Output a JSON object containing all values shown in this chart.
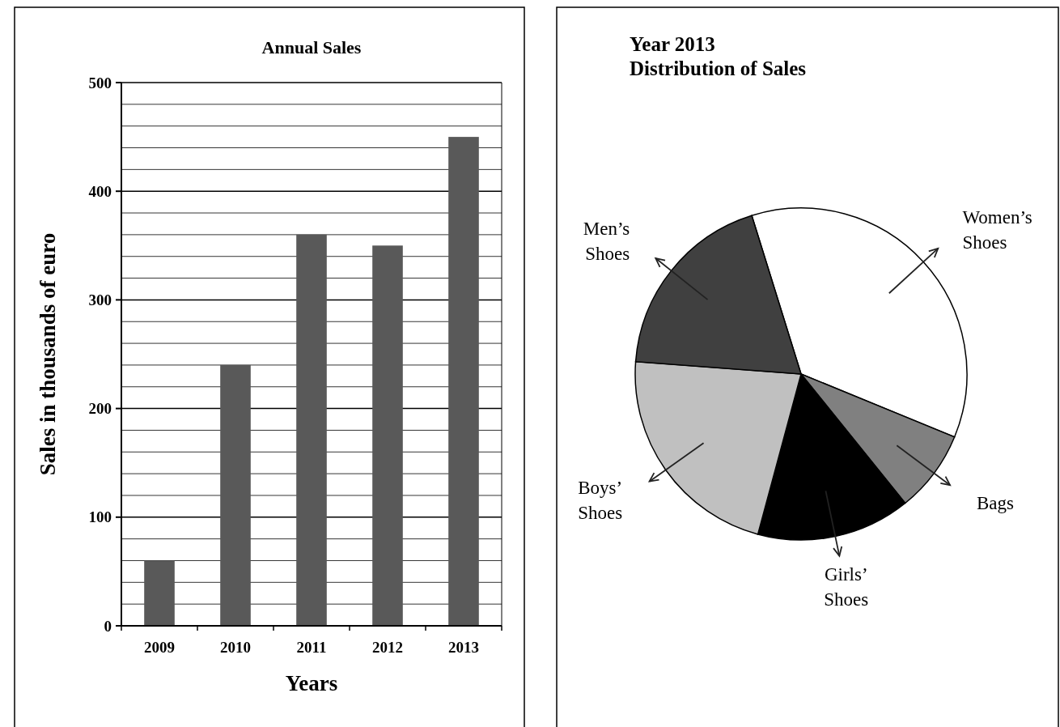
{
  "chart_data": [
    {
      "type": "bar",
      "title": "Annual Sales",
      "xlabel": "Years",
      "ylabel": "Sales in thousands of euro",
      "categories": [
        "2009",
        "2010",
        "2011",
        "2012",
        "2013"
      ],
      "values": [
        60,
        240,
        360,
        350,
        450
      ],
      "color": "#595959",
      "ylim": [
        0,
        500
      ],
      "yticks": [
        0,
        {
          "value": 20,
          "label": null
        },
        {
          "value": 40,
          "label": null
        },
        {
          "value": 60,
          "label": null
        },
        {
          "value": 80,
          "label": null
        },
        100,
        {
          "value": 120,
          "label": null
        },
        {
          "value": 140,
          "label": null
        },
        {
          "value": 160,
          "label": null
        },
        {
          "value": 180,
          "label": null
        },
        200,
        {
          "value": 220,
          "label": null
        },
        {
          "value": 240,
          "label": null
        },
        {
          "value": 260,
          "label": null
        },
        {
          "value": 280,
          "label": null
        },
        300,
        {
          "value": 320,
          "label": null
        },
        {
          "value": 340,
          "label": null
        },
        {
          "value": 360,
          "label": null
        },
        {
          "value": 380,
          "label": null
        },
        400,
        {
          "value": 420,
          "label": null
        },
        {
          "value": 440,
          "label": null
        },
        {
          "value": 460,
          "label": null
        },
        {
          "value": 480,
          "label": null
        },
        500
      ],
      "grid": "y"
    },
    {
      "type": "pie",
      "title": "Year 2013",
      "subtitle": "Distribution of Sales",
      "categories": [
        "Women’s Shoes",
        "Bags",
        "Girls’ Shoes",
        "Boys’ Shoes",
        "Men’s Shoes"
      ],
      "values": [
        36,
        8,
        15,
        22,
        19
      ],
      "colors": [
        "#ffffff",
        "#808080",
        "#000000",
        "#c0c0c0",
        "#404040"
      ]
    }
  ]
}
